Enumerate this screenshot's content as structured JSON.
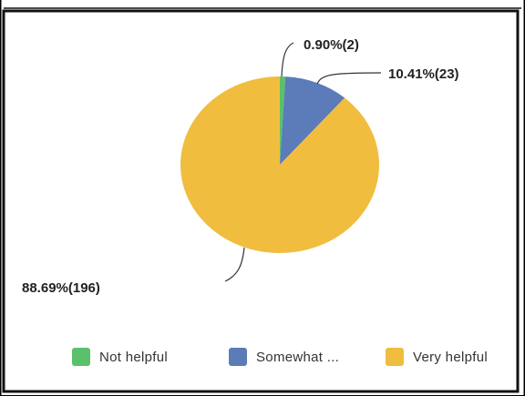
{
  "chart_data": {
    "type": "pie",
    "slices": [
      {
        "name": "Not helpful",
        "legend_label": "Not helpful",
        "value": 2,
        "percent": 0.9,
        "label": "0.90%(2)",
        "color": "#59c16a"
      },
      {
        "name": "Somewhat helpful",
        "legend_label": "Somewhat ...",
        "value": 23,
        "percent": 10.41,
        "label": "10.41%(23)",
        "color": "#5b7bb9"
      },
      {
        "name": "Very helpful",
        "legend_label": "Very helpful",
        "value": 196,
        "percent": 88.69,
        "label": "88.69%(196)",
        "color": "#f0bd3f"
      }
    ],
    "legend": "bottom"
  }
}
